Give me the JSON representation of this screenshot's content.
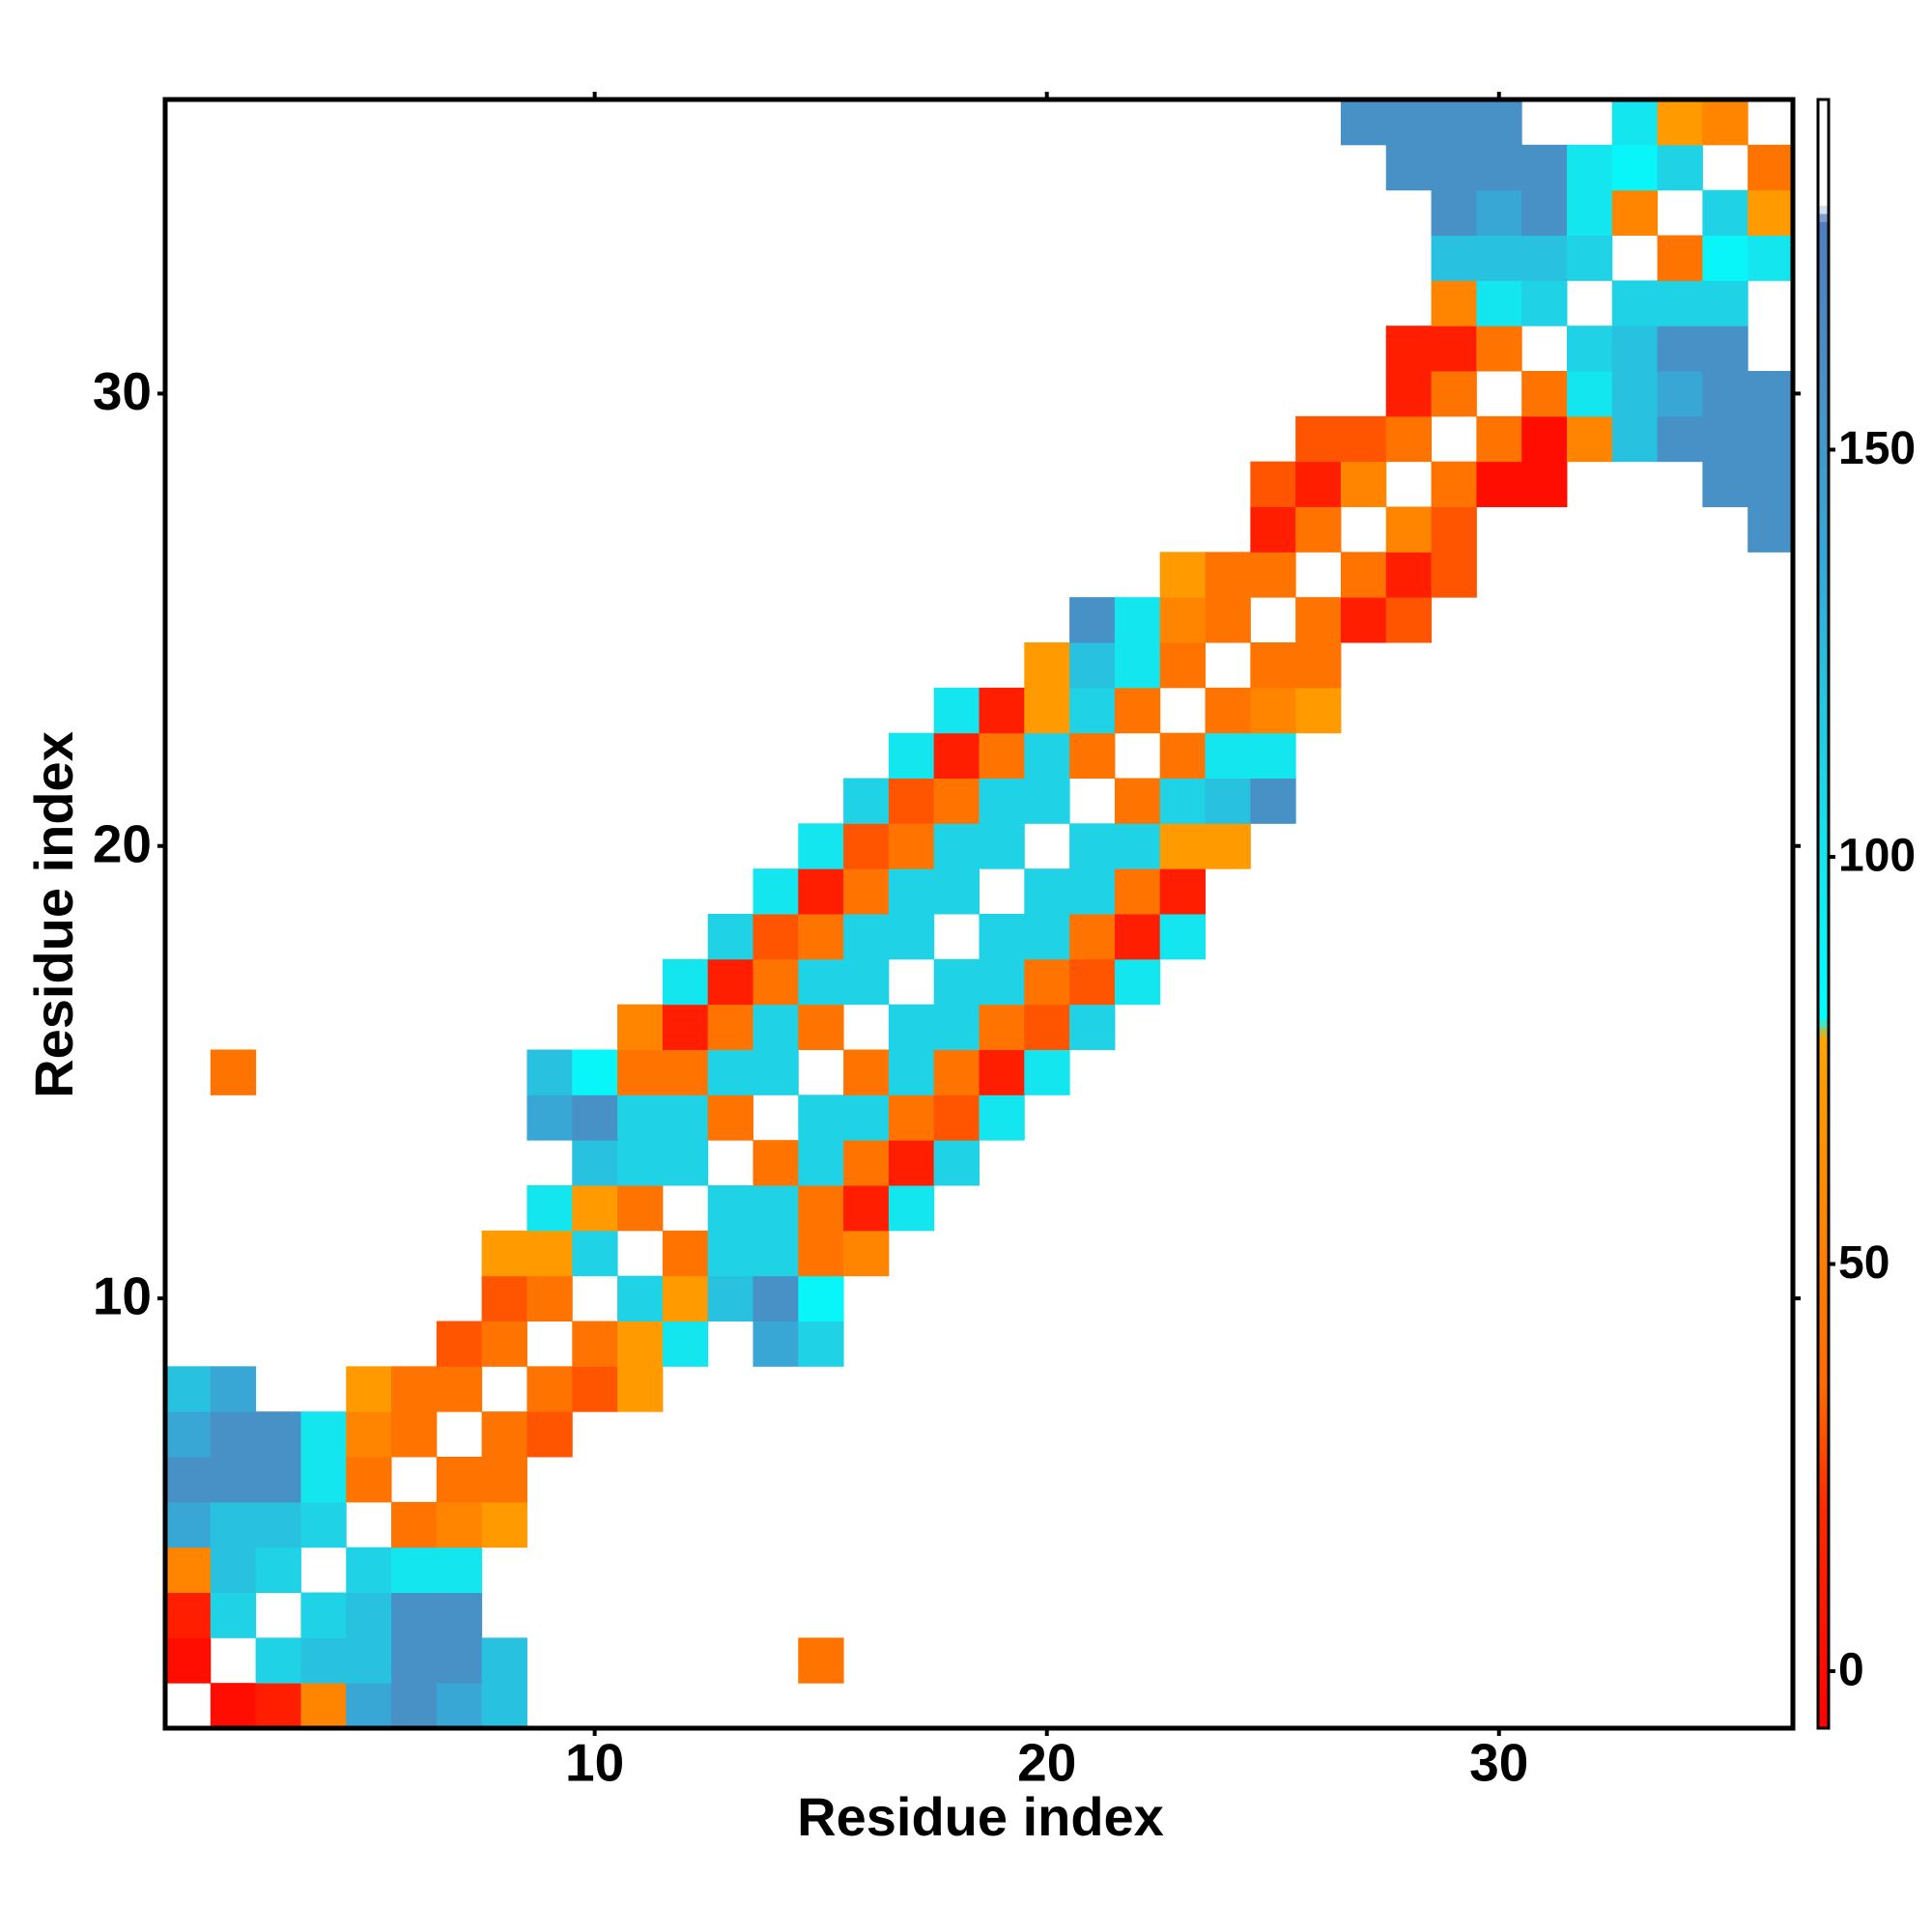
{
  "chart_data": {
    "type": "heatmap",
    "xlabel": "Residue index",
    "ylabel": "Residue index",
    "xlim": [
      0.5,
      36.5
    ],
    "ylim": [
      0.5,
      36.5
    ],
    "xticks": [
      10,
      20,
      30
    ],
    "yticks": [
      10,
      20,
      30
    ],
    "zlim": [
      -7,
      193
    ],
    "zticks": [
      0,
      50,
      100,
      150
    ],
    "colorscale": [
      [
        -7,
        "#ff0000"
      ],
      [
        20,
        "#ff2a00"
      ],
      [
        35,
        "#ff6a00"
      ],
      [
        60,
        "#ff8c00"
      ],
      [
        78,
        "#ffa500"
      ],
      [
        80,
        "#00ffff"
      ],
      [
        100,
        "#14e6f0"
      ],
      [
        120,
        "#26c4e0"
      ],
      [
        135,
        "#35aad8"
      ],
      [
        160,
        "#4a8fc4"
      ],
      [
        178,
        "#4f7fbf"
      ],
      [
        180,
        "#ffffff"
      ],
      [
        193,
        "#ffffff"
      ]
    ],
    "rows": [
      {
        "y": 1,
        "x": [
          2,
          3,
          4,
          5,
          6,
          7,
          8
        ],
        "values": [
          2,
          12,
          55,
          138,
          158,
          138,
          122
        ]
      },
      {
        "y": 2,
        "x": [
          1,
          3,
          4,
          5,
          6,
          7,
          8,
          15
        ],
        "values": [
          2,
          112,
          122,
          122,
          158,
          158,
          122,
          42
        ]
      },
      {
        "y": 3,
        "x": [
          1,
          2,
          4,
          5,
          6,
          7
        ],
        "values": [
          12,
          112,
          112,
          122,
          158,
          158
        ]
      },
      {
        "y": 4,
        "x": [
          1,
          2,
          3,
          5,
          6,
          7
        ],
        "values": [
          55,
          122,
          112,
          112,
          100,
          100
        ]
      },
      {
        "y": 5,
        "x": [
          1,
          2,
          3,
          4,
          6,
          7,
          8
        ],
        "values": [
          138,
          122,
          122,
          112,
          42,
          55,
          70
        ]
      },
      {
        "y": 6,
        "x": [
          1,
          2,
          3,
          4,
          5,
          7,
          8
        ],
        "values": [
          158,
          158,
          158,
          100,
          42,
          42,
          42
        ]
      },
      {
        "y": 7,
        "x": [
          1,
          2,
          3,
          4,
          5,
          6,
          8,
          9
        ],
        "values": [
          138,
          158,
          158,
          100,
          55,
          42,
          42,
          30
        ]
      },
      {
        "y": 8,
        "x": [
          1,
          2,
          5,
          6,
          7,
          9,
          10,
          11
        ],
        "values": [
          122,
          138,
          70,
          42,
          42,
          42,
          30,
          70
        ]
      },
      {
        "y": 9,
        "x": [
          7,
          8,
          10,
          11,
          12,
          14,
          15
        ],
        "values": [
          30,
          42,
          42,
          70,
          100,
          138,
          112
        ]
      },
      {
        "y": 10,
        "x": [
          8,
          9,
          11,
          12,
          13,
          14,
          15
        ],
        "values": [
          30,
          42,
          112,
          70,
          122,
          158,
          88
        ]
      },
      {
        "y": 11,
        "x": [
          8,
          9,
          10,
          12,
          13,
          14,
          15,
          16
        ],
        "values": [
          70,
          70,
          112,
          42,
          112,
          112,
          42,
          55
        ]
      },
      {
        "y": 12,
        "x": [
          9,
          10,
          11,
          13,
          14,
          15,
          16,
          17
        ],
        "values": [
          100,
          70,
          42,
          112,
          112,
          42,
          12,
          100
        ]
      },
      {
        "y": 13,
        "x": [
          10,
          11,
          12,
          14,
          15,
          16,
          17,
          18
        ],
        "values": [
          122,
          112,
          112,
          42,
          112,
          42,
          12,
          112
        ]
      },
      {
        "y": 14,
        "x": [
          9,
          10,
          11,
          12,
          13,
          15,
          16,
          17,
          18,
          19
        ],
        "values": [
          138,
          158,
          112,
          112,
          42,
          112,
          112,
          42,
          30,
          100
        ]
      },
      {
        "y": 15,
        "x": [
          2,
          9,
          10,
          11,
          12,
          13,
          14,
          16,
          17,
          18,
          19,
          20
        ],
        "values": [
          42,
          122,
          88,
          42,
          42,
          112,
          112,
          42,
          112,
          42,
          12,
          100
        ]
      },
      {
        "y": 16,
        "x": [
          11,
          12,
          13,
          14,
          15,
          17,
          18,
          19,
          20,
          21
        ],
        "values": [
          55,
          12,
          42,
          112,
          42,
          112,
          112,
          42,
          30,
          112
        ]
      },
      {
        "y": 17,
        "x": [
          12,
          13,
          14,
          15,
          16,
          18,
          19,
          20,
          21,
          22
        ],
        "values": [
          100,
          12,
          42,
          112,
          112,
          112,
          112,
          42,
          30,
          100
        ]
      },
      {
        "y": 18,
        "x": [
          13,
          14,
          15,
          16,
          17,
          19,
          20,
          21,
          22,
          23
        ],
        "values": [
          112,
          30,
          42,
          112,
          112,
          112,
          112,
          42,
          12,
          100
        ]
      },
      {
        "y": 19,
        "x": [
          14,
          15,
          16,
          17,
          18,
          20,
          21,
          22,
          23
        ],
        "values": [
          100,
          12,
          42,
          112,
          112,
          112,
          112,
          42,
          12
        ]
      },
      {
        "y": 20,
        "x": [
          15,
          16,
          17,
          18,
          19,
          21,
          22,
          23,
          24
        ],
        "values": [
          100,
          30,
          42,
          112,
          112,
          112,
          112,
          70,
          70
        ]
      },
      {
        "y": 21,
        "x": [
          16,
          17,
          18,
          19,
          20,
          22,
          23,
          24,
          25
        ],
        "values": [
          112,
          30,
          42,
          112,
          112,
          42,
          112,
          122,
          158
        ]
      },
      {
        "y": 22,
        "x": [
          17,
          18,
          19,
          20,
          21,
          23,
          24,
          25
        ],
        "values": [
          100,
          12,
          42,
          112,
          42,
          42,
          100,
          100
        ]
      },
      {
        "y": 23,
        "x": [
          18,
          19,
          20,
          21,
          22,
          24,
          25,
          26
        ],
        "values": [
          100,
          12,
          70,
          112,
          42,
          42,
          55,
          70
        ]
      },
      {
        "y": 24,
        "x": [
          20,
          21,
          22,
          23,
          25,
          26
        ],
        "values": [
          70,
          122,
          100,
          42,
          42,
          42
        ]
      },
      {
        "y": 25,
        "x": [
          21,
          22,
          23,
          24,
          26,
          27,
          28
        ],
        "values": [
          158,
          100,
          55,
          42,
          42,
          12,
          30
        ]
      },
      {
        "y": 26,
        "x": [
          23,
          24,
          25,
          27,
          28,
          29
        ],
        "values": [
          70,
          42,
          42,
          42,
          12,
          30
        ]
      },
      {
        "y": 27,
        "x": [
          25,
          26,
          28,
          29,
          36
        ],
        "values": [
          12,
          42,
          55,
          30,
          158
        ]
      },
      {
        "y": 28,
        "x": [
          25,
          26,
          27,
          29,
          30,
          31,
          35,
          36
        ],
        "values": [
          30,
          12,
          55,
          42,
          2,
          2,
          158,
          158
        ]
      },
      {
        "y": 29,
        "x": [
          26,
          27,
          28,
          30,
          31,
          32,
          33,
          34,
          35,
          36
        ],
        "values": [
          30,
          30,
          42,
          42,
          2,
          55,
          122,
          158,
          158,
          158
        ]
      },
      {
        "y": 30,
        "x": [
          28,
          29,
          31,
          32,
          33,
          34,
          35,
          36
        ],
        "values": [
          12,
          42,
          42,
          100,
          122,
          138,
          158,
          158
        ]
      },
      {
        "y": 31,
        "x": [
          28,
          29,
          30,
          32,
          33,
          34,
          35
        ],
        "values": [
          12,
          12,
          42,
          112,
          122,
          158,
          158
        ]
      },
      {
        "y": 32,
        "x": [
          29,
          30,
          31,
          33,
          34,
          35
        ],
        "values": [
          55,
          100,
          112,
          112,
          112,
          112
        ]
      },
      {
        "y": 33,
        "x": [
          29,
          30,
          31,
          32,
          34,
          35,
          36
        ],
        "values": [
          122,
          122,
          122,
          112,
          42,
          88,
          100
        ]
      },
      {
        "y": 34,
        "x": [
          29,
          30,
          31,
          32,
          33,
          35,
          36
        ],
        "values": [
          158,
          138,
          158,
          100,
          55,
          112,
          70
        ]
      },
      {
        "y": 35,
        "x": [
          28,
          29,
          30,
          31,
          32,
          33,
          34,
          36
        ],
        "values": [
          158,
          158,
          158,
          158,
          100,
          88,
          112,
          42
        ]
      },
      {
        "y": 36,
        "x": [
          27,
          28,
          29,
          30,
          33,
          34,
          35
        ],
        "values": [
          158,
          158,
          158,
          158,
          100,
          70,
          55
        ]
      }
    ]
  }
}
